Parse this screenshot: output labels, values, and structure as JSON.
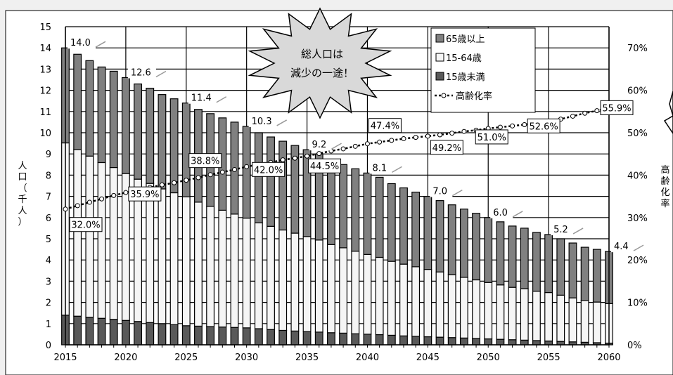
{
  "chart_data": {
    "type": "bar",
    "subtype": "stacked bar with line on secondary axis",
    "title": "",
    "callout": [
      "総人口は",
      "減少の一途！"
    ],
    "ylabel": "人口（千人）",
    "ylabel_chars": [
      "人",
      "口",
      "（",
      "千",
      "人",
      "）"
    ],
    "y2label": "高齢化率",
    "y2label_chars": [
      "高",
      "齢",
      "化",
      "率"
    ],
    "ylim": [
      0,
      15
    ],
    "y2lim": [
      0,
      75
    ],
    "y_ticks": [
      "0",
      "1",
      "2",
      "3",
      "4",
      "5",
      "6",
      "7",
      "8",
      "9",
      "10",
      "11",
      "12",
      "13",
      "14",
      "15"
    ],
    "y2_ticks": [
      "0%",
      "10%",
      "20%",
      "30%",
      "40%",
      "50%",
      "60%",
      "70%"
    ],
    "x_tick_labels": [
      "2015",
      "2020",
      "2025",
      "2030",
      "2035",
      "2040",
      "2045",
      "2050",
      "2055",
      "2060"
    ],
    "legend": {
      "position": "top-right",
      "items": [
        "65歳以上",
        "15-64歳",
        "15歳未満",
        "高齢化率"
      ]
    },
    "x": [
      2015,
      2016,
      2017,
      2018,
      2019,
      2020,
      2021,
      2022,
      2023,
      2024,
      2025,
      2026,
      2027,
      2028,
      2029,
      2030,
      2031,
      2032,
      2033,
      2034,
      2035,
      2036,
      2037,
      2038,
      2039,
      2040,
      2041,
      2042,
      2043,
      2044,
      2045,
      2046,
      2047,
      2048,
      2049,
      2050,
      2051,
      2052,
      2053,
      2054,
      2055,
      2056,
      2057,
      2058,
      2059,
      2060
    ],
    "total": [
      14.0,
      13.7,
      13.4,
      13.1,
      12.9,
      12.6,
      12.3,
      12.1,
      11.8,
      11.6,
      11.4,
      11.1,
      10.9,
      10.7,
      10.5,
      10.3,
      10.0,
      9.8,
      9.6,
      9.4,
      9.2,
      9.0,
      8.7,
      8.5,
      8.3,
      8.1,
      7.9,
      7.6,
      7.4,
      7.2,
      7.0,
      6.8,
      6.6,
      6.4,
      6.2,
      6.0,
      5.8,
      5.6,
      5.5,
      5.3,
      5.2,
      5.0,
      4.8,
      4.6,
      4.5,
      4.4
    ],
    "under15": [
      1.4,
      1.35,
      1.3,
      1.25,
      1.2,
      1.15,
      1.1,
      1.05,
      1.0,
      0.95,
      0.9,
      0.88,
      0.86,
      0.84,
      0.82,
      0.8,
      0.76,
      0.72,
      0.68,
      0.65,
      0.62,
      0.6,
      0.57,
      0.55,
      0.52,
      0.5,
      0.48,
      0.45,
      0.42,
      0.4,
      0.38,
      0.36,
      0.34,
      0.32,
      0.3,
      0.28,
      0.26,
      0.24,
      0.22,
      0.2,
      0.18,
      0.16,
      0.14,
      0.12,
      0.1,
      0.08
    ],
    "aging_rate": [
      32.0,
      32.8,
      33.6,
      34.4,
      35.2,
      35.9,
      36.5,
      37.1,
      37.7,
      38.2,
      38.8,
      39.4,
      40.1,
      40.7,
      41.3,
      42.0,
      42.5,
      43.0,
      43.6,
      44.0,
      44.5,
      45.1,
      45.7,
      46.2,
      46.8,
      47.4,
      47.8,
      48.2,
      48.6,
      48.9,
      49.2,
      49.5,
      49.9,
      50.3,
      50.6,
      51.0,
      51.3,
      51.6,
      51.9,
      52.3,
      52.6,
      53.2,
      53.9,
      54.6,
      55.2,
      55.9
    ],
    "total_labels": [
      {
        "year": 2015,
        "text": "14.0"
      },
      {
        "year": 2020,
        "text": "12.6"
      },
      {
        "year": 2025,
        "text": "11.4"
      },
      {
        "year": 2030,
        "text": "10.3"
      },
      {
        "year": 2035,
        "text": "9.2"
      },
      {
        "year": 2040,
        "text": "8.1"
      },
      {
        "year": 2045,
        "text": "7.0"
      },
      {
        "year": 2050,
        "text": "6.0"
      },
      {
        "year": 2055,
        "text": "5.2"
      },
      {
        "year": 2060,
        "text": "4.4"
      }
    ],
    "rate_labels": [
      {
        "year": 2015,
        "text": "32.0%"
      },
      {
        "year": 2020,
        "text": "35.9%"
      },
      {
        "year": 2025,
        "text": "38.8%"
      },
      {
        "year": 2030,
        "text": "42.0%"
      },
      {
        "year": 2035,
        "text": "44.5%"
      },
      {
        "year": 2040,
        "text": "47.4%"
      },
      {
        "year": 2045,
        "text": "49.2%"
      },
      {
        "year": 2050,
        "text": "51.0%"
      },
      {
        "year": 2055,
        "text": "52.6%"
      },
      {
        "year": 2060,
        "text": "55.9%"
      }
    ],
    "colors": {
      "over65": "#808080",
      "age15_64": "#f5f5f5",
      "under15": "#595959",
      "line": "#000000",
      "background": "#ffffff",
      "page": "#f0f0f0"
    },
    "grid": true
  }
}
